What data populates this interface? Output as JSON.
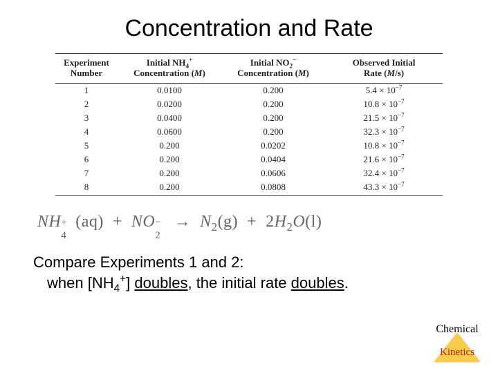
{
  "title": "Concentration and Rate",
  "table": {
    "columns": {
      "c1a": "Experiment",
      "c1b": "Number",
      "c2a": "Initial NH",
      "c2b": "Concentration (",
      "c2c": ")",
      "c3a": "Initial NO",
      "c3b": "Concentration (",
      "c3c": ")",
      "c4a": "Observed Initial",
      "c4b": "Rate (",
      "c4c": "/s)"
    },
    "rows": [
      {
        "n": "1",
        "nh4": "0.0100",
        "no2": "0.200",
        "rate_m": "5.4",
        "rate_e": "7"
      },
      {
        "n": "2",
        "nh4": "0.0200",
        "no2": "0.200",
        "rate_m": "10.8",
        "rate_e": "7"
      },
      {
        "n": "3",
        "nh4": "0.0400",
        "no2": "0.200",
        "rate_m": "21.5",
        "rate_e": "7"
      },
      {
        "n": "4",
        "nh4": "0.0600",
        "no2": "0.200",
        "rate_m": "32.3",
        "rate_e": "7"
      },
      {
        "n": "5",
        "nh4": "0.200",
        "no2": "0.0202",
        "rate_m": "10.8",
        "rate_e": "7"
      },
      {
        "n": "6",
        "nh4": "0.200",
        "no2": "0.0404",
        "rate_m": "21.6",
        "rate_e": "7"
      },
      {
        "n": "7",
        "nh4": "0.200",
        "no2": "0.0606",
        "rate_m": "32.4",
        "rate_e": "7"
      },
      {
        "n": "8",
        "nh4": "0.200",
        "no2": "0.0808",
        "rate_m": "43.3",
        "rate_e": "7"
      }
    ]
  },
  "equation": {
    "nh": "NH",
    "nh_sub": "4",
    "nh_sup": "+",
    "aq1": "(aq)",
    "plus1": "+",
    "no": "NO",
    "no_sub": "2",
    "no_sup": "−",
    "arrow": "→",
    "n2": "N",
    "n2_sub": "2",
    "g": "(g)",
    "plus2": "+",
    "coef2": "2",
    "h2o_h": "H",
    "h2o_sub": "2",
    "h2o_o": "O",
    "l": "(l)"
  },
  "body": {
    "line1": "Compare Experiments 1 and 2:",
    "line2a": "when [NH",
    "line2_sub": "4",
    "line2_sup": "+",
    "line2b": "] ",
    "line2_u1": "doubles",
    "line2c": ", the initial rate ",
    "line2_u2": "doubles",
    "line2d": "."
  },
  "badge": {
    "top": "Chemical",
    "bottom": "Kinetics"
  },
  "style": {
    "title_fontsize": 34,
    "body_fontsize": 22,
    "table_fontsize": 13,
    "equation_color": "#666666",
    "triangle_color": "#f6cc4a",
    "badge_text_color": "#b02525",
    "background": "#ffffff"
  }
}
